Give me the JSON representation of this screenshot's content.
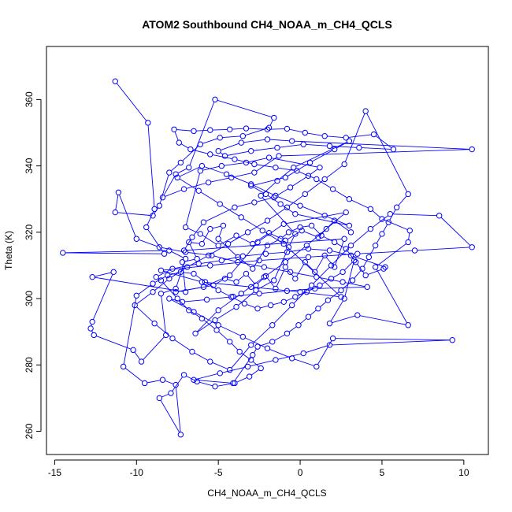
{
  "chart_data": {
    "type": "line",
    "title": "ATOM2 Southbound CH4_NOAA_m_CH4_QCLS",
    "xlabel": "CH4_NOAA_m_CH4_QCLS",
    "ylabel": "Theta (K)",
    "xlim": [
      -15.5,
      11.5
    ],
    "ylim": [
      253,
      376
    ],
    "xticks": [
      -15,
      -10,
      -5,
      0,
      5,
      10
    ],
    "yticks": [
      260,
      280,
      300,
      320,
      340,
      360
    ],
    "series": [
      {
        "name": "CH4_NOAA_m_CH4_QCLS vs Theta",
        "color": "#0000ff",
        "marker": "open-circle",
        "points": [
          [
            -11.3,
            365.5
          ],
          [
            -9.3,
            353.0
          ],
          [
            -8.9,
            327.0
          ],
          [
            -9.4,
            321.5
          ],
          [
            -8.3,
            313.5
          ],
          [
            -14.5,
            313.8
          ],
          [
            -8.0,
            314.5
          ],
          [
            -7.0,
            312.0
          ],
          [
            -7.6,
            303.0
          ],
          [
            -8.5,
            301.5
          ],
          [
            -8.2,
            289.0
          ],
          [
            -9.7,
            281.0
          ],
          [
            -10.2,
            284.5
          ],
          [
            -12.6,
            289.0
          ],
          [
            -12.8,
            291.0
          ],
          [
            -12.7,
            293.0
          ],
          [
            -11.4,
            308.0
          ],
          [
            -12.7,
            306.5
          ],
          [
            -7.0,
            302.0
          ],
          [
            -7.2,
            311.0
          ],
          [
            -6.3,
            312.0
          ],
          [
            -6.8,
            317.0
          ],
          [
            -6.0,
            316.5
          ],
          [
            -5.5,
            321.0
          ],
          [
            -4.7,
            322.0
          ],
          [
            -5.0,
            318.0
          ],
          [
            -3.8,
            312.5
          ],
          [
            -2.9,
            309.0
          ],
          [
            -2.0,
            316.0
          ],
          [
            -1.2,
            318.0
          ],
          [
            -0.7,
            320.0
          ],
          [
            0.0,
            321.5
          ],
          [
            0.7,
            322.0
          ],
          [
            1.3,
            319.0
          ],
          [
            2.1,
            317.0
          ],
          [
            2.8,
            315.0
          ],
          [
            3.4,
            311.0
          ],
          [
            4.0,
            307.0
          ],
          [
            5.1,
            309.0
          ],
          [
            5.2,
            309.5
          ],
          [
            3.1,
            313.0
          ],
          [
            1.8,
            314.5
          ],
          [
            0.5,
            315.0
          ],
          [
            -0.8,
            314.0
          ],
          [
            -2.1,
            313.5
          ],
          [
            -3.5,
            312.8
          ],
          [
            -4.8,
            311.5
          ],
          [
            -6.2,
            310.5
          ],
          [
            -7.8,
            309.0
          ],
          [
            -8.8,
            306.5
          ],
          [
            -8.5,
            305.5
          ],
          [
            -7.5,
            300.0
          ],
          [
            -6.8,
            296.5
          ],
          [
            -6.0,
            294.0
          ],
          [
            -5.1,
            290.5
          ],
          [
            -4.3,
            287.0
          ],
          [
            -3.7,
            284.0
          ],
          [
            -3.0,
            281.5
          ],
          [
            -2.4,
            279.0
          ],
          [
            -3.1,
            276.5
          ],
          [
            -4.0,
            274.5
          ],
          [
            -5.2,
            273.5
          ],
          [
            -6.3,
            275.0
          ],
          [
            -7.1,
            277.0
          ],
          [
            -7.9,
            271.5
          ],
          [
            -8.6,
            270.0
          ],
          [
            -7.3,
            259.0
          ],
          [
            -7.6,
            274.0
          ],
          [
            -8.4,
            275.5
          ],
          [
            -9.5,
            274.5
          ],
          [
            -10.8,
            279.5
          ],
          [
            -10.0,
            300.9
          ],
          [
            -9.0,
            304.5
          ],
          [
            -8.1,
            307.0
          ],
          [
            -7.3,
            308.0
          ],
          [
            -6.5,
            307.5
          ],
          [
            -5.8,
            305.0
          ],
          [
            -5.0,
            302.5
          ],
          [
            -4.2,
            300.5
          ],
          [
            -3.4,
            298.5
          ],
          [
            -2.6,
            297.0
          ],
          [
            -1.8,
            298.0
          ],
          [
            -1.0,
            299.0
          ],
          [
            -0.3,
            300.5
          ],
          [
            0.4,
            302.0
          ],
          [
            1.2,
            304.0
          ],
          [
            1.9,
            306.0
          ],
          [
            2.6,
            308.0
          ],
          [
            3.3,
            311.5
          ],
          [
            2.7,
            300.0
          ],
          [
            1.8,
            292.5
          ],
          [
            3.5,
            295.0
          ],
          [
            6.6,
            292.0
          ],
          [
            4.6,
            309.5
          ],
          [
            6.6,
            317.0
          ],
          [
            6.7,
            320.5
          ],
          [
            5.0,
            324.0
          ],
          [
            4.3,
            327.0
          ],
          [
            3.0,
            330.0
          ],
          [
            2.0,
            333.0
          ],
          [
            1.0,
            336.0
          ],
          [
            -0.2,
            338.5
          ],
          [
            -1.5,
            339.5
          ],
          [
            -2.8,
            340.5
          ],
          [
            -4.0,
            342.0
          ],
          [
            -5.5,
            343.5
          ],
          [
            -6.7,
            345.0
          ],
          [
            -7.4,
            347.0
          ],
          [
            -7.7,
            351.0
          ],
          [
            -6.5,
            350.5
          ],
          [
            -5.5,
            350.8
          ],
          [
            -4.3,
            351.0
          ],
          [
            -3.3,
            351.3
          ],
          [
            -2.0,
            351.0
          ],
          [
            -0.8,
            351.2
          ],
          [
            0.3,
            350.0
          ],
          [
            1.5,
            349.0
          ],
          [
            2.8,
            348.5
          ],
          [
            4.5,
            349.5
          ],
          [
            5.7,
            345.0
          ],
          [
            3.6,
            345.5
          ],
          [
            1.8,
            346.0
          ],
          [
            0.2,
            346.5
          ],
          [
            -1.4,
            345.5
          ],
          [
            -3.0,
            344.5
          ],
          [
            -4.6,
            343.0
          ],
          [
            -5.0,
            344.5
          ],
          [
            -3.6,
            347.0
          ],
          [
            -2.0,
            348.0
          ],
          [
            -0.5,
            347.5
          ],
          [
            10.5,
            345.0
          ],
          [
            -1.3,
            343.0
          ],
          [
            -2.8,
            338.0
          ],
          [
            -4.2,
            336.5
          ],
          [
            -5.6,
            335.0
          ],
          [
            -7.1,
            333.0
          ],
          [
            -8.4,
            330.5
          ],
          [
            -7.6,
            337.5
          ],
          [
            -6.8,
            339.5
          ],
          [
            -5.2,
            360.0
          ],
          [
            -1.6,
            354.5
          ],
          [
            -1.9,
            351.5
          ],
          [
            -3.5,
            349.0
          ],
          [
            -4.9,
            348.5
          ],
          [
            -6.1,
            346.5
          ],
          [
            -7.3,
            341.0
          ],
          [
            -8.0,
            338.0
          ],
          [
            -8.6,
            328.0
          ],
          [
            -9.0,
            325.0
          ],
          [
            -11.3,
            326.0
          ],
          [
            -11.1,
            332.0
          ],
          [
            -10.0,
            318.0
          ],
          [
            -8.6,
            315.5
          ],
          [
            -7.0,
            314.0
          ],
          [
            -5.4,
            313.0
          ],
          [
            -3.8,
            311.0
          ],
          [
            -2.2,
            309.5
          ],
          [
            -0.6,
            308.0
          ],
          [
            1.0,
            306.5
          ],
          [
            2.6,
            305.0
          ],
          [
            4.1,
            303.5
          ],
          [
            0.9,
            303.0
          ],
          [
            -0.8,
            302.3
          ],
          [
            -2.5,
            301.5
          ],
          [
            -4.1,
            300.6
          ],
          [
            -5.7,
            299.7
          ],
          [
            -7.2,
            299.0
          ],
          [
            -8.0,
            300.0
          ],
          [
            -6.5,
            296.0
          ],
          [
            -5.0,
            292.0
          ],
          [
            -3.5,
            288.5
          ],
          [
            -2.0,
            285.0
          ],
          [
            -0.5,
            282.0
          ],
          [
            1.0,
            279.5
          ],
          [
            2.0,
            288.0
          ],
          [
            9.3,
            287.5
          ],
          [
            1.8,
            286.0
          ],
          [
            0.2,
            283.5
          ],
          [
            -1.5,
            281.5
          ],
          [
            -3.2,
            279.5
          ],
          [
            -4.9,
            277.5
          ],
          [
            -6.5,
            275.5
          ],
          [
            -4.1,
            274.5
          ],
          [
            -2.9,
            283.0
          ],
          [
            -2.6,
            285.5
          ],
          [
            -1.7,
            287.0
          ],
          [
            -0.8,
            289.5
          ],
          [
            -0.1,
            292.0
          ],
          [
            0.5,
            294.5
          ],
          [
            1.1,
            297.0
          ],
          [
            1.7,
            299.5
          ],
          [
            2.5,
            302.5
          ],
          [
            3.2,
            305.5
          ],
          [
            3.8,
            309.0
          ],
          [
            4.2,
            312.5
          ],
          [
            4.6,
            316.0
          ],
          [
            5.0,
            319.5
          ],
          [
            5.4,
            323.0
          ],
          [
            5.9,
            327.5
          ],
          [
            6.6,
            331.5
          ],
          [
            4.0,
            356.5
          ],
          [
            2.7,
            340.5
          ],
          [
            1.5,
            336.0
          ],
          [
            0.3,
            331.5
          ],
          [
            -0.8,
            327.5
          ],
          [
            -2.0,
            323.5
          ],
          [
            -3.2,
            320.0
          ],
          [
            -4.4,
            316.5
          ],
          [
            -5.6,
            313.0
          ],
          [
            -6.9,
            309.5
          ],
          [
            -8.0,
            306.0
          ],
          [
            -9.0,
            302.0
          ],
          [
            -10.1,
            298.0
          ],
          [
            -8.9,
            292.5
          ],
          [
            -7.8,
            288.0
          ],
          [
            -6.6,
            284.0
          ],
          [
            -5.5,
            281.0
          ],
          [
            -4.3,
            278.5
          ],
          [
            -3.0,
            286.0
          ],
          [
            -1.7,
            292.0
          ],
          [
            -0.5,
            298.0
          ],
          [
            0.7,
            304.0
          ],
          [
            1.9,
            310.0
          ],
          [
            3.1,
            316.0
          ],
          [
            4.3,
            321.0
          ],
          [
            5.5,
            325.5
          ],
          [
            8.5,
            325.0
          ],
          [
            10.5,
            315.5
          ],
          [
            7.0,
            314.5
          ],
          [
            3.5,
            313.5
          ],
          [
            0.5,
            312.5
          ],
          [
            -2.5,
            311.5
          ],
          [
            -5.5,
            310.0
          ],
          [
            -8.5,
            308.5
          ],
          [
            -6.0,
            305.0
          ],
          [
            -3.0,
            303.5
          ],
          [
            0.0,
            302.0
          ],
          [
            2.5,
            300.5
          ],
          [
            -1.0,
            316.5
          ],
          [
            -2.3,
            320.5
          ],
          [
            -3.6,
            324.5
          ],
          [
            -4.9,
            328.5
          ],
          [
            -6.2,
            332.5
          ],
          [
            -7.5,
            336.5
          ],
          [
            -6.0,
            340.0
          ],
          [
            -4.5,
            337.5
          ],
          [
            -3.0,
            334.5
          ],
          [
            -1.5,
            331.0
          ],
          [
            0.0,
            328.0
          ],
          [
            1.5,
            325.0
          ],
          [
            3.0,
            322.0
          ],
          [
            -0.3,
            325.5
          ],
          [
            -1.2,
            328.5
          ],
          [
            -2.1,
            331.5
          ],
          [
            -3.0,
            334.0
          ],
          [
            -0.9,
            336.5
          ],
          [
            0.6,
            341.0
          ],
          [
            2.1,
            345.0
          ],
          [
            3.0,
            347.5
          ],
          [
            -0.4,
            339.5
          ],
          [
            -1.4,
            335.5
          ],
          [
            -2.4,
            331.0
          ],
          [
            -0.3,
            319.5
          ],
          [
            -0.7,
            315.5
          ],
          [
            -1.6,
            305.5
          ],
          [
            -2.7,
            302.5
          ],
          [
            -3.9,
            297.5
          ],
          [
            -5.2,
            293.5
          ],
          [
            -6.4,
            289.5
          ],
          [
            -5.0,
            296.5
          ],
          [
            -3.6,
            301.5
          ],
          [
            -2.2,
            306.5
          ],
          [
            -0.9,
            311.0
          ],
          [
            0.4,
            316.0
          ],
          [
            1.6,
            321.0
          ],
          [
            2.8,
            326.0
          ],
          [
            -1.0,
            322.5
          ],
          [
            -2.6,
            317.0
          ],
          [
            -4.3,
            307.0
          ],
          [
            -5.9,
            303.5
          ],
          [
            -7.6,
            302.0
          ],
          [
            -5.3,
            304.0
          ],
          [
            -4.6,
            306.0
          ],
          [
            -3.9,
            305.0
          ],
          [
            -3.3,
            307.5
          ],
          [
            -2.7,
            304.0
          ],
          [
            -2.1,
            306.8
          ],
          [
            -1.5,
            303.0
          ],
          [
            -0.9,
            309.5
          ],
          [
            -0.3,
            306.0
          ],
          [
            0.3,
            311.0
          ],
          [
            0.9,
            308.0
          ],
          [
            1.5,
            313.0
          ],
          [
            2.1,
            309.5
          ],
          [
            2.7,
            318.0
          ],
          [
            -7.1,
            314.5
          ],
          [
            -6.6,
            318.5
          ],
          [
            -5.9,
            323.0
          ],
          [
            -4.0,
            327.5
          ],
          [
            -2.8,
            329.0
          ],
          [
            -1.6,
            330.5
          ],
          [
            -0.6,
            333.5
          ],
          [
            0.5,
            337.0
          ],
          [
            1.2,
            339.5
          ],
          [
            -1.9,
            342.5
          ],
          [
            -3.3,
            341.0
          ],
          [
            -4.8,
            340.0
          ],
          [
            -6.1,
            338.5
          ],
          [
            -7.0,
            321.5
          ],
          [
            -6.1,
            319.5
          ],
          [
            -5.0,
            316.0
          ],
          [
            -3.9,
            319.0
          ],
          [
            -2.9,
            316.5
          ],
          [
            -1.9,
            319.8
          ],
          [
            -0.9,
            317.5
          ],
          [
            0.1,
            320.5
          ],
          [
            1.1,
            318.5
          ],
          [
            2.1,
            323.5
          ],
          [
            3.1,
            320.0
          ]
        ]
      }
    ]
  }
}
